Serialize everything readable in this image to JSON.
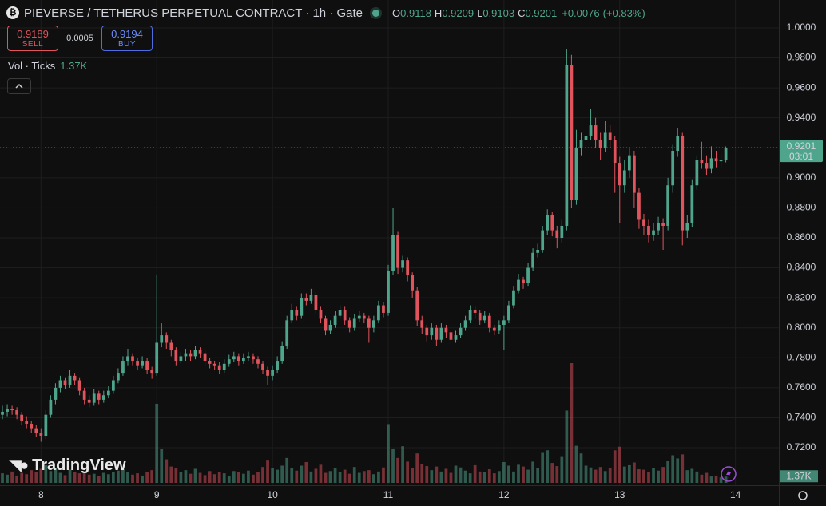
{
  "chart_data": {
    "type": "candlestick",
    "title": "PIEVERSE / TETHERUS PERPETUAL CONTRACT · 1h · Gate",
    "legend_labels": [
      "O",
      "H",
      "L",
      "C"
    ],
    "change": "+0.0076",
    "change_percent": "(+0.83%)",
    "sell": {
      "price": 0.9189,
      "label": "SELL"
    },
    "buy": {
      "price": 0.9194,
      "label": "BUY"
    },
    "spread": 0.0005,
    "volume_title": "Vol · Ticks",
    "volume_label": "1.37K",
    "countdown": "03:01",
    "watermark": "TradingView",
    "up_color": "#4fa58c",
    "down_color": "#e0545e",
    "grid": true,
    "xlim": [
      -0.5,
      161
    ],
    "xticks": [
      8,
      {
        "value": 32,
        "label": "9"
      },
      {
        "value": 56,
        "label": "10"
      },
      {
        "value": 80,
        "label": "11"
      },
      {
        "value": 104,
        "label": "12"
      },
      {
        "value": 128,
        "label": "13"
      },
      {
        "value": 152,
        "label": "14"
      }
    ],
    "ylim": [
      0.695,
      1.0186
    ],
    "yticks": [
      {
        "value": 0.72,
        "label": "0.7200"
      },
      {
        "value": 0.74,
        "label": "0.7400"
      },
      {
        "value": 0.76,
        "label": "0.7600"
      },
      {
        "value": 0.78,
        "label": "0.7800"
      },
      {
        "value": 0.8,
        "label": "0.8000"
      },
      {
        "value": 0.82,
        "label": "0.8200"
      },
      {
        "value": 0.84,
        "label": "0.8400"
      },
      {
        "value": 0.86,
        "label": "0.8600"
      },
      {
        "value": 0.88,
        "label": "0.8800"
      },
      {
        "value": 0.9,
        "label": "0.9000"
      },
      {
        "value": 0.92,
        "label": "0.9200"
      },
      {
        "value": 0.94,
        "label": "0.9400"
      },
      {
        "value": 0.96,
        "label": "0.9600"
      },
      {
        "value": 0.98,
        "label": "0.9800"
      },
      {
        "value": 1.0,
        "label": "1.0000"
      }
    ],
    "open": [
      0.742,
      0.744,
      0.746,
      0.745,
      0.742,
      0.738,
      0.736,
      0.733,
      0.73,
      0.728,
      0.742,
      0.752,
      0.76,
      0.765,
      0.762,
      0.768,
      0.765,
      0.758,
      0.752,
      0.75,
      0.756,
      0.752,
      0.755,
      0.758,
      0.765,
      0.77,
      0.778,
      0.781,
      0.778,
      0.775,
      0.778,
      0.772,
      0.77,
      0.79,
      0.795,
      0.79,
      0.785,
      0.778,
      0.781,
      0.783,
      0.781,
      0.785,
      0.783,
      0.778,
      0.776,
      0.775,
      0.772,
      0.776,
      0.779,
      0.781,
      0.778,
      0.78,
      0.781,
      0.779,
      0.776,
      0.772,
      0.768,
      0.772,
      0.778,
      0.788,
      0.805,
      0.812,
      0.808,
      0.82,
      0.818,
      0.822,
      0.812,
      0.806,
      0.798,
      0.802,
      0.808,
      0.812,
      0.805,
      0.8,
      0.806,
      0.808,
      0.806,
      0.8,
      0.805,
      0.815,
      0.81,
      0.838,
      0.862,
      0.84,
      0.845,
      0.835,
      0.825,
      0.805,
      0.8,
      0.795,
      0.8,
      0.792,
      0.8,
      0.797,
      0.792,
      0.795,
      0.8,
      0.805,
      0.812,
      0.81,
      0.805,
      0.808,
      0.8,
      0.798,
      0.802,
      0.805,
      0.815,
      0.825,
      0.832,
      0.83,
      0.84,
      0.85,
      0.852,
      0.865,
      0.875,
      0.865,
      0.86,
      0.868,
      0.975,
      0.885,
      0.92,
      0.925,
      0.928,
      0.935,
      0.925,
      0.92,
      0.93,
      0.925,
      0.91,
      0.895,
      0.905,
      0.915,
      0.89,
      0.872,
      0.868,
      0.862,
      0.865,
      0.87,
      0.868,
      0.895,
      0.918,
      0.928,
      0.865,
      0.87,
      0.895,
      0.912,
      0.91,
      0.906,
      0.913,
      0.911,
      0.9118
    ],
    "high": [
      0.748,
      0.749,
      0.748,
      0.747,
      0.744,
      0.741,
      0.738,
      0.735,
      0.733,
      0.745,
      0.755,
      0.763,
      0.768,
      0.767,
      0.772,
      0.77,
      0.767,
      0.76,
      0.755,
      0.759,
      0.758,
      0.758,
      0.761,
      0.768,
      0.773,
      0.781,
      0.786,
      0.783,
      0.78,
      0.781,
      0.78,
      0.774,
      0.835,
      0.803,
      0.797,
      0.792,
      0.787,
      0.784,
      0.786,
      0.785,
      0.788,
      0.787,
      0.785,
      0.78,
      0.778,
      0.777,
      0.779,
      0.782,
      0.784,
      0.783,
      0.783,
      0.784,
      0.783,
      0.781,
      0.778,
      0.774,
      0.775,
      0.781,
      0.791,
      0.808,
      0.816,
      0.814,
      0.823,
      0.823,
      0.826,
      0.824,
      0.814,
      0.808,
      0.805,
      0.811,
      0.815,
      0.814,
      0.807,
      0.809,
      0.811,
      0.81,
      0.808,
      0.808,
      0.818,
      0.817,
      0.842,
      0.88,
      0.864,
      0.848,
      0.847,
      0.837,
      0.827,
      0.808,
      0.802,
      0.803,
      0.802,
      0.803,
      0.802,
      0.799,
      0.798,
      0.803,
      0.808,
      0.815,
      0.814,
      0.812,
      0.811,
      0.81,
      0.802,
      0.805,
      0.808,
      0.818,
      0.828,
      0.836,
      0.834,
      0.843,
      0.853,
      0.856,
      0.868,
      0.879,
      0.877,
      0.868,
      0.872,
      0.986,
      0.982,
      0.932,
      0.93,
      0.935,
      0.946,
      0.94,
      0.93,
      0.938,
      0.935,
      0.928,
      0.914,
      0.912,
      0.92,
      0.918,
      0.893,
      0.876,
      0.872,
      0.87,
      0.874,
      0.873,
      0.9,
      0.922,
      0.933,
      0.93,
      0.875,
      0.899,
      0.915,
      0.924,
      0.915,
      0.921,
      0.918,
      0.916,
      0.9209
    ],
    "low": [
      0.739,
      0.741,
      0.742,
      0.739,
      0.735,
      0.733,
      0.73,
      0.727,
      0.724,
      0.726,
      0.74,
      0.749,
      0.757,
      0.759,
      0.76,
      0.762,
      0.755,
      0.749,
      0.747,
      0.748,
      0.749,
      0.75,
      0.753,
      0.756,
      0.763,
      0.768,
      0.775,
      0.775,
      0.772,
      0.773,
      0.769,
      0.766,
      0.768,
      0.787,
      0.786,
      0.781,
      0.775,
      0.776,
      0.778,
      0.778,
      0.779,
      0.78,
      0.775,
      0.773,
      0.772,
      0.769,
      0.77,
      0.774,
      0.777,
      0.775,
      0.776,
      0.778,
      0.776,
      0.773,
      0.769,
      0.762,
      0.765,
      0.77,
      0.776,
      0.786,
      0.803,
      0.805,
      0.806,
      0.815,
      0.816,
      0.809,
      0.803,
      0.795,
      0.796,
      0.8,
      0.806,
      0.802,
      0.797,
      0.798,
      0.804,
      0.803,
      0.79,
      0.797,
      0.803,
      0.807,
      0.808,
      0.835,
      0.836,
      0.837,
      0.831,
      0.82,
      0.801,
      0.796,
      0.791,
      0.792,
      0.788,
      0.79,
      0.793,
      0.789,
      0.79,
      0.793,
      0.798,
      0.803,
      0.806,
      0.802,
      0.803,
      0.797,
      0.795,
      0.796,
      0.785,
      0.803,
      0.813,
      0.823,
      0.826,
      0.828,
      0.838,
      0.847,
      0.85,
      0.862,
      0.861,
      0.853,
      0.857,
      0.865,
      0.88,
      0.882,
      0.915,
      0.92,
      0.925,
      0.92,
      0.912,
      0.917,
      0.92,
      0.89,
      0.87,
      0.89,
      0.9,
      0.88,
      0.866,
      0.862,
      0.857,
      0.858,
      0.862,
      0.852,
      0.865,
      0.89,
      0.914,
      0.855,
      0.86,
      0.867,
      0.892,
      0.906,
      0.902,
      0.903,
      0.907,
      0.907,
      0.9103
    ],
    "close": [
      0.744,
      0.746,
      0.745,
      0.742,
      0.738,
      0.736,
      0.733,
      0.73,
      0.728,
      0.742,
      0.752,
      0.76,
      0.765,
      0.762,
      0.768,
      0.765,
      0.758,
      0.752,
      0.75,
      0.756,
      0.752,
      0.755,
      0.758,
      0.765,
      0.77,
      0.778,
      0.781,
      0.778,
      0.775,
      0.778,
      0.772,
      0.77,
      0.79,
      0.795,
      0.79,
      0.785,
      0.778,
      0.781,
      0.783,
      0.781,
      0.785,
      0.783,
      0.778,
      0.776,
      0.775,
      0.772,
      0.776,
      0.779,
      0.781,
      0.778,
      0.78,
      0.781,
      0.779,
      0.776,
      0.772,
      0.768,
      0.772,
      0.778,
      0.788,
      0.805,
      0.812,
      0.808,
      0.82,
      0.818,
      0.822,
      0.812,
      0.806,
      0.798,
      0.802,
      0.808,
      0.812,
      0.805,
      0.8,
      0.806,
      0.808,
      0.806,
      0.8,
      0.805,
      0.815,
      0.81,
      0.838,
      0.862,
      0.84,
      0.845,
      0.835,
      0.825,
      0.805,
      0.8,
      0.795,
      0.8,
      0.792,
      0.8,
      0.797,
      0.792,
      0.795,
      0.8,
      0.805,
      0.812,
      0.81,
      0.805,
      0.808,
      0.8,
      0.798,
      0.802,
      0.805,
      0.815,
      0.825,
      0.832,
      0.83,
      0.84,
      0.85,
      0.852,
      0.865,
      0.875,
      0.865,
      0.86,
      0.868,
      0.975,
      0.885,
      0.92,
      0.925,
      0.928,
      0.935,
      0.925,
      0.92,
      0.93,
      0.925,
      0.91,
      0.895,
      0.905,
      0.915,
      0.89,
      0.872,
      0.868,
      0.862,
      0.865,
      0.87,
      0.868,
      0.895,
      0.918,
      0.928,
      0.865,
      0.87,
      0.895,
      0.912,
      0.91,
      0.906,
      0.913,
      0.911,
      0.9118,
      0.9201
    ],
    "volume": [
      2100,
      1800,
      2500,
      1600,
      2200,
      1900,
      2800,
      2400,
      3100,
      3900,
      2600,
      3300,
      2200,
      1700,
      2900,
      2300,
      2100,
      2600,
      1800,
      2000,
      1500,
      2200,
      1900,
      2400,
      2700,
      3000,
      2300,
      1800,
      2100,
      1600,
      2400,
      2800,
      17500,
      7500,
      5200,
      3600,
      3200,
      2400,
      2800,
      2000,
      3100,
      2200,
      1700,
      2600,
      1900,
      2300,
      2100,
      1500,
      2600,
      2300,
      2000,
      2700,
      1800,
      2400,
      3500,
      5100,
      3300,
      2900,
      3800,
      5500,
      3200,
      2700,
      3800,
      4600,
      2500,
      3100,
      4000,
      2200,
      2600,
      3300,
      2400,
      2900,
      2000,
      3500,
      2200,
      2600,
      2800,
      1900,
      2500,
      3400,
      13000,
      7600,
      5500,
      8100,
      4700,
      3300,
      6500,
      4200,
      3700,
      2800,
      3600,
      2500,
      3100,
      2200,
      3800,
      3400,
      2700,
      2100,
      3900,
      2500,
      2400,
      3000,
      2100,
      2600,
      4600,
      3800,
      2500,
      4000,
      3600,
      2900,
      4700,
      3300,
      6800,
      7200,
      4400,
      3700,
      5900,
      16000,
      26500,
      8200,
      6500,
      3800,
      3400,
      2900,
      3500,
      2600,
      3300,
      7200,
      8000,
      3600,
      3900,
      4500,
      3000,
      2900,
      2400,
      3200,
      2700,
      3500,
      4800,
      6100,
      5400,
      6300,
      2800,
      3100,
      2500,
      1800,
      2200,
      1400,
      1600,
      1200,
      1370
    ]
  }
}
